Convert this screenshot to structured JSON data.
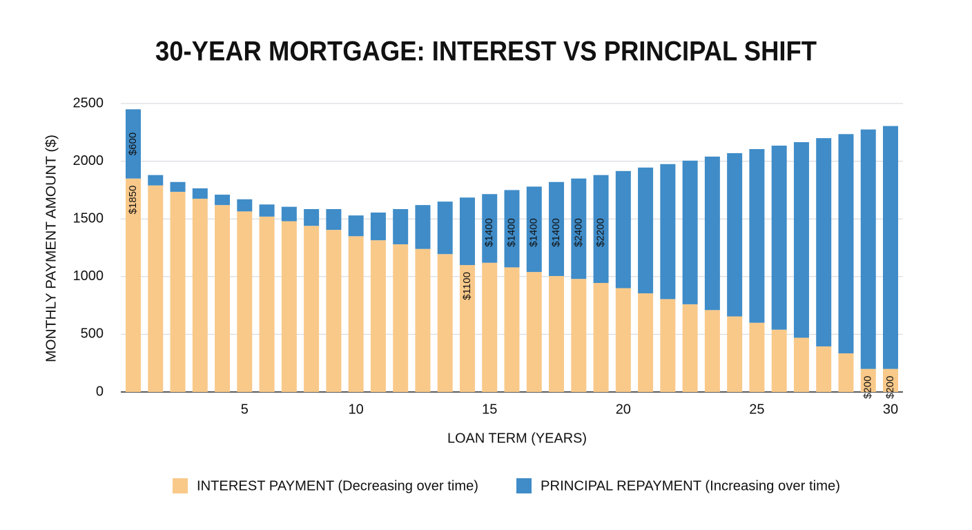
{
  "chart_data": {
    "type": "stacked_bar",
    "title": "30-YEAR MORTGAGE: INTEREST VS PRINCIPAL SHIFT",
    "x_label": "LOAN TERM (YEARS)",
    "y_label": "MONTHLY PAYMENT AMOUNT ($)",
    "categories": [
      null,
      null,
      null,
      null,
      null,
      "5",
      null,
      null,
      null,
      null,
      "10",
      null,
      null,
      null,
      null,
      null,
      "15",
      null,
      null,
      null,
      null,
      null,
      "20",
      null,
      null,
      null,
      null,
      null,
      "25",
      null,
      null,
      null,
      null,
      null,
      "30"
    ],
    "series": [
      {
        "name": "INTEREST PAYMENT (Decreasing over time)",
        "color": "#f9c98a",
        "values": [
          1850,
          1790,
          1735,
          1675,
          1620,
          1565,
          1520,
          1480,
          1440,
          1405,
          1350,
          1315,
          1280,
          1240,
          1195,
          1100,
          1120,
          1080,
          1040,
          1005,
          980,
          945,
          900,
          855,
          805,
          760,
          710,
          655,
          600,
          540,
          470,
          395,
          335,
          200,
          200
        ],
        "value_labels": [
          "$1850",
          null,
          null,
          null,
          null,
          null,
          null,
          null,
          null,
          null,
          null,
          null,
          null,
          null,
          null,
          "$1100",
          null,
          null,
          null,
          null,
          null,
          null,
          null,
          null,
          null,
          null,
          null,
          null,
          null,
          null,
          null,
          null,
          null,
          "$200",
          "$200"
        ]
      },
      {
        "name": "PRINCIPAL REPAYMENT (Increasing over time)",
        "color": "#3f8cc8",
        "values": [
          600,
          90,
          85,
          90,
          90,
          105,
          105,
          125,
          145,
          180,
          180,
          240,
          305,
          380,
          455,
          585,
          595,
          670,
          740,
          815,
          870,
          935,
          1015,
          1090,
          1170,
          1245,
          1330,
          1415,
          1505,
          1595,
          1695,
          1805,
          1900,
          2075,
          2105
        ],
        "value_labels": [
          "$600",
          null,
          null,
          null,
          null,
          null,
          null,
          null,
          null,
          null,
          null,
          null,
          null,
          null,
          null,
          null,
          null,
          null,
          null,
          null,
          null,
          null,
          null,
          null,
          null,
          null,
          null,
          null,
          null,
          null,
          null,
          null,
          null,
          null,
          null
        ]
      }
    ],
    "annotations": [
      {
        "text": "$1400",
        "index": 16
      },
      {
        "text": "$1400",
        "index": 17
      },
      {
        "text": "$1400",
        "index": 18
      },
      {
        "text": "$1400",
        "index": 19
      },
      {
        "text": "$2400",
        "index": 20
      },
      {
        "text": "$2200",
        "index": 21
      }
    ],
    "ylim": [
      0,
      2500
    ],
    "yticks": [
      0,
      500,
      1000,
      1500,
      2000,
      2500
    ],
    "grid": true
  }
}
